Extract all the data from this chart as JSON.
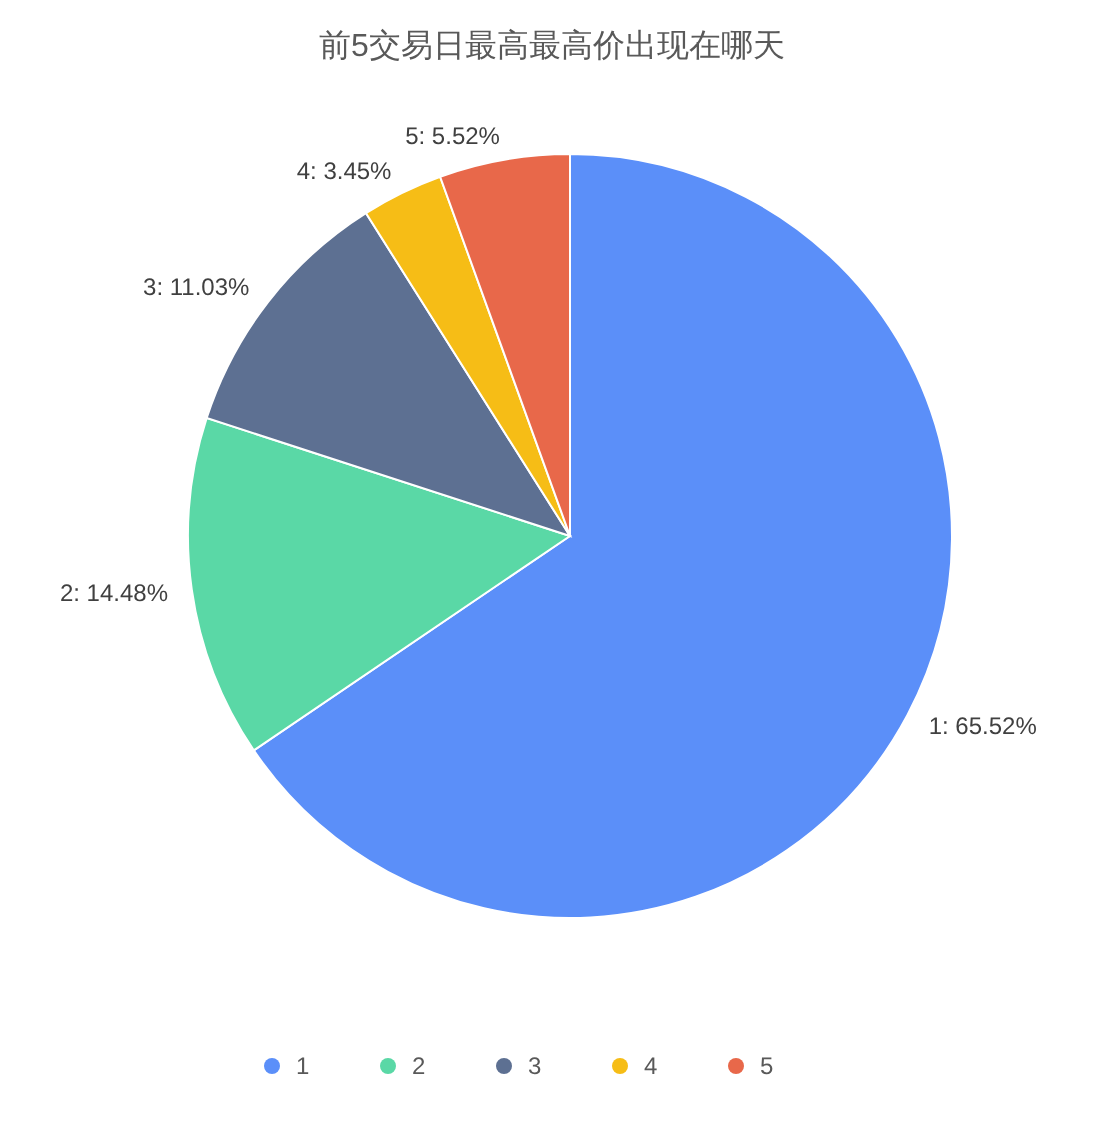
{
  "chart_data": {
    "type": "pie",
    "title": "前5交易日最高最高价出现在哪天",
    "categories": [
      "1",
      "2",
      "3",
      "4",
      "5"
    ],
    "values": [
      65.52,
      14.48,
      11.03,
      3.45,
      5.52
    ],
    "colors": [
      "#5b8ff9",
      "#5ad8a6",
      "#5d7092",
      "#f6bd16",
      "#e8684a"
    ],
    "value_labels": [
      "1: 65.52%",
      "2: 14.48%",
      "3: 11.03%",
      "4: 3.45%",
      "5: 5.52%"
    ],
    "legend": "bottom"
  }
}
